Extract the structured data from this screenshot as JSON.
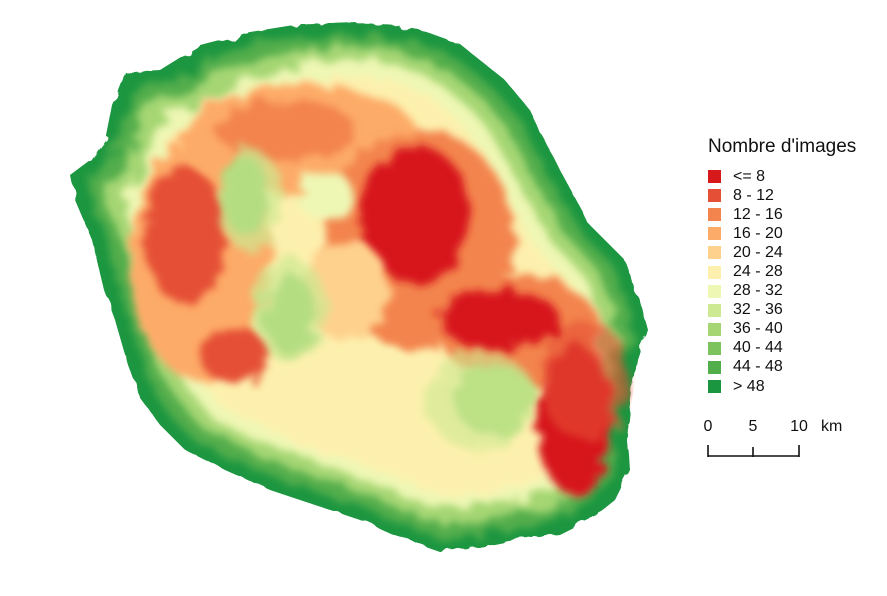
{
  "legend": {
    "title": "Nombre d'images",
    "classes": [
      {
        "label": "<= 8",
        "color": "#d7191c"
      },
      {
        "label": "8 - 12",
        "color": "#e54f35"
      },
      {
        "label": "12 - 16",
        "color": "#f3844d"
      },
      {
        "label": "16 - 20",
        "color": "#fdab68"
      },
      {
        "label": "20 - 24",
        "color": "#fed18d"
      },
      {
        "label": "24 - 28",
        "color": "#fdf0ae"
      },
      {
        "label": "28 - 32",
        "color": "#eef7b4"
      },
      {
        "label": "32 - 36",
        "color": "#cde991"
      },
      {
        "label": "36 - 40",
        "color": "#a5d673"
      },
      {
        "label": "40 - 44",
        "color": "#7cc25d"
      },
      {
        "label": "44 - 48",
        "color": "#52ad4b"
      },
      {
        "label": "> 48",
        "color": "#1a9641"
      }
    ]
  },
  "scale": {
    "ticks": [
      "0",
      "5",
      "10"
    ],
    "unit": "km"
  }
}
